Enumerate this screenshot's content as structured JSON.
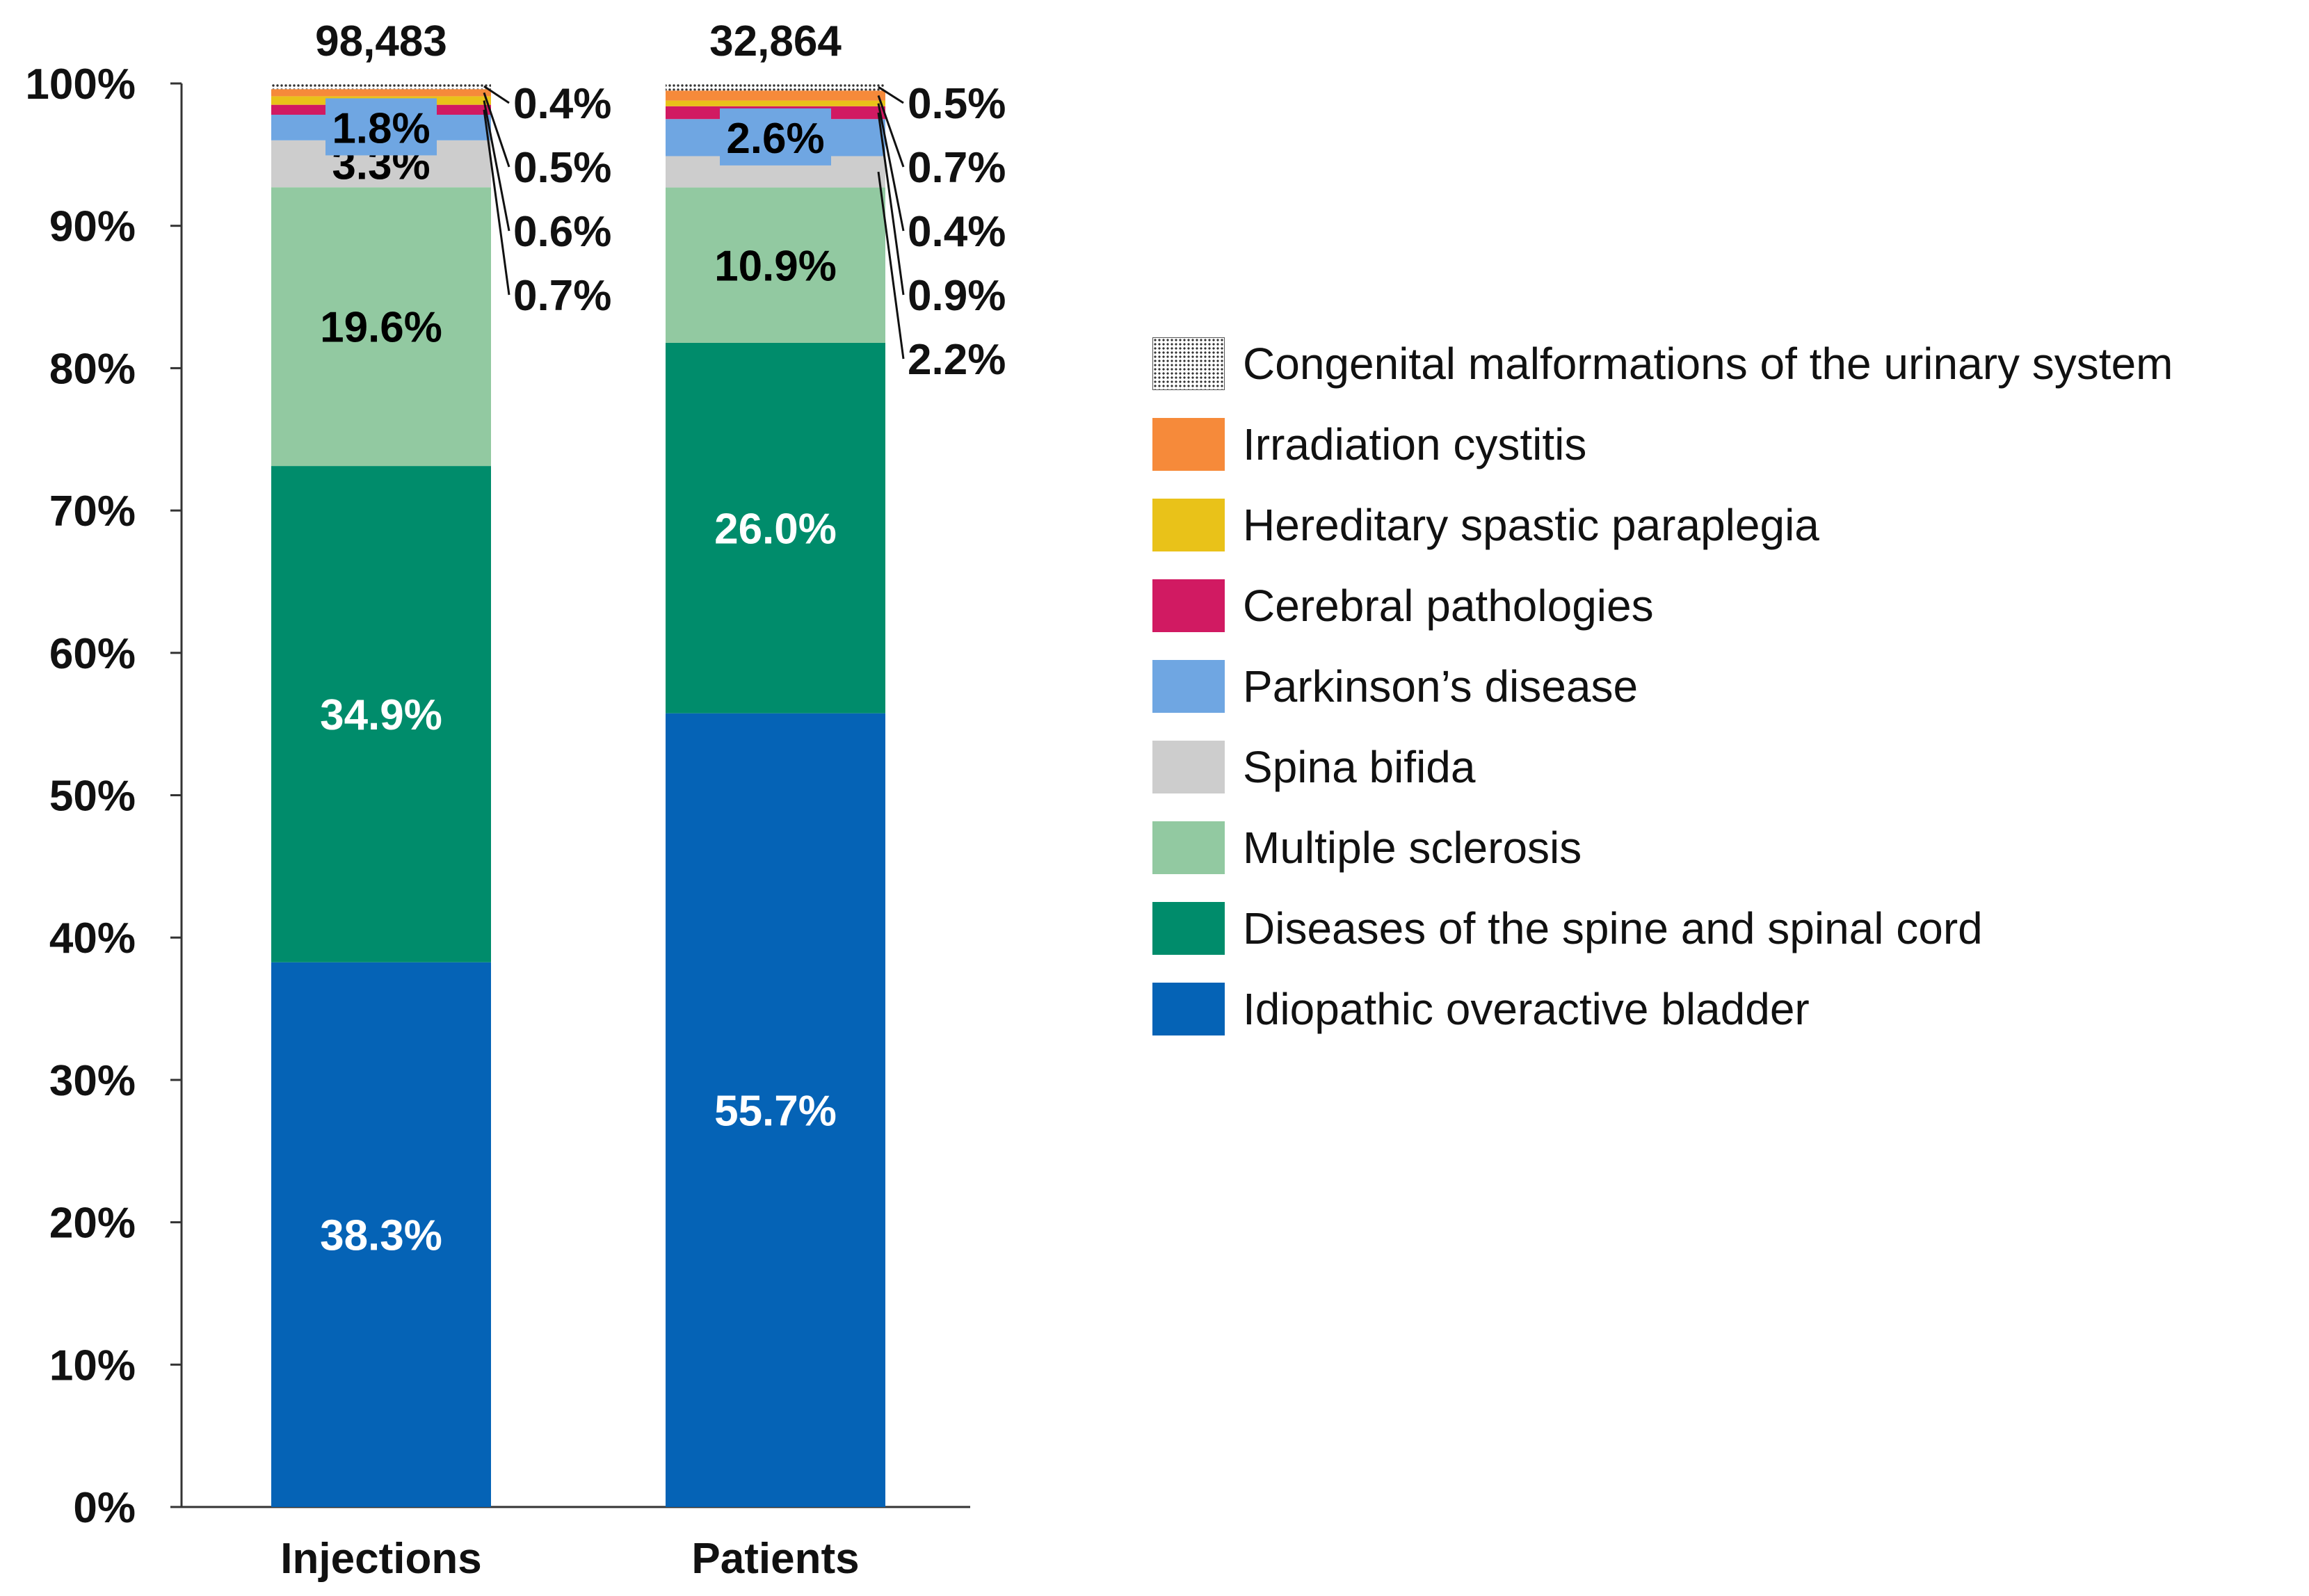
{
  "chart_data": {
    "type": "bar",
    "stacked": true,
    "normalized": true,
    "categories": [
      "Injections",
      "Patients"
    ],
    "totals": [
      "98,483",
      "32,864"
    ],
    "ylim": [
      0,
      100
    ],
    "yticks": [
      "0%",
      "10%",
      "20%",
      "30%",
      "40%",
      "50%",
      "60%",
      "70%",
      "80%",
      "90%",
      "100%"
    ],
    "series": [
      {
        "name": "Idiopathic overactive bladder",
        "color": "#0563B6",
        "values": [
          38.3,
          55.7
        ],
        "labels": [
          "38.3%",
          "55.7%"
        ],
        "label_color": "#ffffff"
      },
      {
        "name": "Diseases of the spine and spinal cord",
        "color": "#008C6B",
        "values": [
          34.9,
          26.0
        ],
        "labels": [
          "34.9%",
          "26.0%"
        ],
        "label_color": "#ffffff"
      },
      {
        "name": "Multiple sclerosis",
        "color": "#92C9A1",
        "values": [
          19.6,
          10.9
        ],
        "labels": [
          "19.6%",
          "10.9%"
        ],
        "label_color": "#000000"
      },
      {
        "name": "Spina bifida",
        "color": "#CDCDCD",
        "values": [
          3.3,
          2.2
        ],
        "labels": [
          "3.3%",
          "2.2%"
        ],
        "label_color": "#000000"
      },
      {
        "name": "Parkinson’s disease",
        "color": "#6FA6E2",
        "values": [
          1.8,
          2.6
        ],
        "labels": [
          "1.8%",
          "2.6%"
        ],
        "label_color": "#000000"
      },
      {
        "name": "Cerebral pathologies",
        "color": "#D11A62",
        "values": [
          0.7,
          0.9
        ],
        "labels": [
          "0.7%",
          "0.9%"
        ],
        "label_color": "#000000"
      },
      {
        "name": "Hereditary spastic paraplegia",
        "color": "#E9C219",
        "values": [
          0.6,
          0.4
        ],
        "labels": [
          "0.6%",
          "0.4%"
        ],
        "label_color": "#000000"
      },
      {
        "name": "Irradiation cystitis",
        "color": "#F68A3A",
        "values": [
          0.5,
          0.7
        ],
        "labels": [
          "0.5%",
          "0.7%"
        ],
        "label_color": "#000000"
      },
      {
        "name": "Congenital malformations of the urinary system",
        "color": "hatch",
        "values": [
          0.4,
          0.5
        ],
        "labels": [
          "0.4%",
          "0.5%"
        ],
        "label_color": "#000000"
      }
    ],
    "legend_position": "right"
  }
}
